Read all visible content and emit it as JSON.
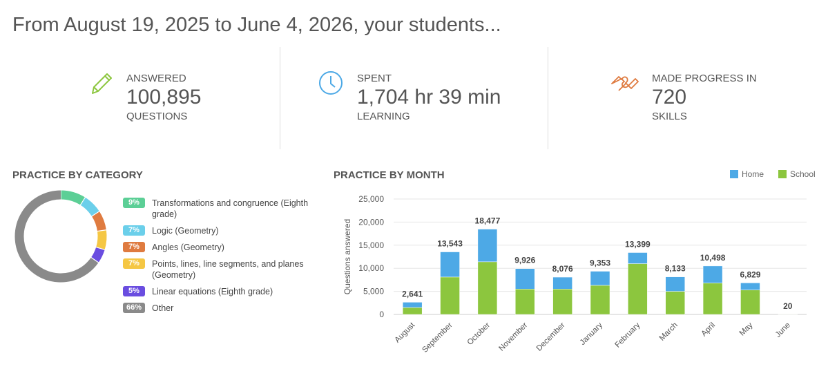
{
  "header": {
    "title": "From August 19, 2025 to June 4, 2026, your students..."
  },
  "stats": [
    {
      "label_top": "ANSWERED",
      "value": "100,895",
      "label_bottom": "QUESTIONS"
    },
    {
      "label_top": "SPENT",
      "value": "1,704 hr 39 min",
      "label_bottom": "LEARNING"
    },
    {
      "label_top": "MADE PROGRESS IN",
      "value": "720",
      "label_bottom": "SKILLS"
    }
  ],
  "chart_data": [
    {
      "type": "pie",
      "title": "PRACTICE BY CATEGORY",
      "donut": true,
      "categories": [
        "Transformations and congruence (Eighth grade)",
        "Logic (Geometry)",
        "Angles (Geometry)",
        "Points, lines, line segments, and planes (Geometry)",
        "Linear equations (Eighth grade)",
        "Other"
      ],
      "values": [
        9,
        7,
        7,
        7,
        5,
        66
      ],
      "value_labels": [
        "9%",
        "7%",
        "7%",
        "7%",
        "5%",
        "66%"
      ],
      "colors": [
        "#5ccf96",
        "#6bcfea",
        "#df7b40",
        "#f5c744",
        "#6a4de0",
        "#8a8a8a"
      ]
    },
    {
      "type": "stacked_bar",
      "title": "PRACTICE BY MONTH",
      "y_label": "Questions answered",
      "categories": [
        "August",
        "September",
        "October",
        "November",
        "December",
        "January",
        "February",
        "March",
        "April",
        "May",
        "June"
      ],
      "series": [
        {
          "name": "Home",
          "color": "#4da9e6",
          "values": [
            1141,
            5443,
            7077,
            4426,
            2576,
            3053,
            2399,
            3133,
            3698,
            1529,
            0
          ]
        },
        {
          "name": "School",
          "color": "#8cc63e",
          "values": [
            1500,
            8100,
            11400,
            5500,
            5500,
            6300,
            11000,
            5000,
            6800,
            5300,
            20
          ]
        }
      ],
      "totals": {
        "values": [
          2641,
          13543,
          18477,
          9926,
          8076,
          9353,
          13399,
          8133,
          10498,
          6829,
          20
        ],
        "value_labels": [
          "2,641",
          "13,543",
          "18,477",
          "9,926",
          "8,076",
          "9,353",
          "13,399",
          "8,133",
          "10,498",
          "6,829",
          "20"
        ]
      },
      "ylim": [
        0,
        25000
      ],
      "yticks": [
        0,
        {
          "value": 5000,
          "label": "5,000"
        },
        {
          "value": 10000,
          "label": "10,000"
        },
        {
          "value": 15000,
          "label": "15,000"
        },
        {
          "value": 20000,
          "label": "20,000"
        },
        {
          "value": 25000,
          "label": "25,000"
        }
      ],
      "grid": true,
      "legend": "top-right"
    }
  ]
}
